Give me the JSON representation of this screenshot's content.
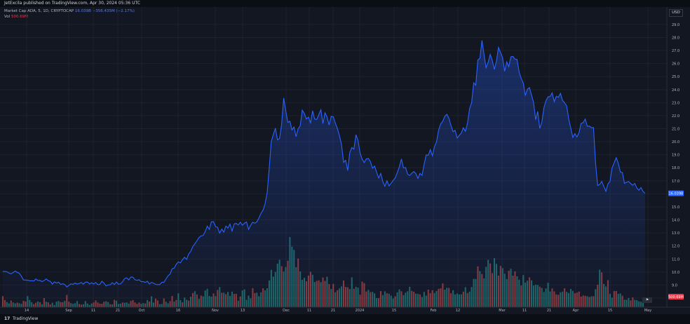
{
  "header": {
    "text": "JetExcila published on TradingView.com, Apr 30, 2024 05:36 UTC"
  },
  "legend": {
    "main_label": "Market Cap ADA, 5, 1D, CRYPTOCAP",
    "main_value": "16.039B",
    "main_change": "−356.435M (−2.17%)",
    "vol_label": "Vol",
    "vol_value": "500.69M"
  },
  "currency": "USD",
  "footer": {
    "logo": "17",
    "brand": "TradingView"
  },
  "colors": {
    "line": "#2962ff",
    "vol_up": "#26a69a",
    "vol_down": "#ef5350",
    "price_tag": "#2962ff",
    "vol_tag": "#f23645"
  },
  "chart_data": {
    "type": "area",
    "y_axis": {
      "ticks": [
        "29.0",
        "28.0",
        "27.0",
        "26.0",
        "25.0",
        "24.0",
        "23.0",
        "22.0",
        "21.0",
        "20.0",
        "19.0",
        "18.0",
        "17.0",
        "16.0",
        "15.0",
        "14.0",
        "13.0",
        "12.0",
        "11.0",
        "10.0",
        "9.0",
        "8.0"
      ],
      "range": [
        7.3,
        29.8
      ],
      "unit": "B"
    },
    "x_axis": {
      "ticks": [
        "14",
        "Sep",
        "11",
        "21",
        "Oct",
        "16",
        "Nov",
        "13",
        "Dec",
        "11",
        "21",
        "2024",
        "15",
        "Feb",
        "12",
        "Mar",
        "11",
        "21",
        "Apr",
        "15",
        "May"
      ]
    },
    "last_price_label": "16.039B",
    "last_volume_label": "500.69M",
    "last_price": 16.04,
    "series": [
      {
        "values": [
          10.04,
          10.04,
          10.02,
          9.92,
          9.86,
          9.96,
          10.07,
          9.97,
          9.9,
          9.67,
          9.39,
          9.38,
          9.37,
          9.33,
          9.33,
          9.31,
          9.47,
          9.35,
          9.36,
          9.26,
          9.35,
          9.47,
          9.34,
          9.28,
          9.07,
          9.24,
          9.15,
          9.22,
          9.05,
          9.1,
          9.04,
          8.85,
          8.97,
          9.09,
          9.05,
          9.15,
          9.07,
          9.12,
          9.19,
          9.07,
          9.22,
          9.23,
          9.08,
          9.17,
          9.08,
          9.19,
          9.03,
          9.05,
          9.29,
          9.14,
          8.93,
          9.01,
          9.02,
          9.18,
          9.04,
          9.23,
          9.06,
          9.09,
          9.25,
          9.5,
          9.55,
          9.39,
          9.62,
          9.6,
          9.41,
          9.36,
          9.41,
          9.26,
          9.26,
          9.2,
          9.29,
          9.07,
          9.2,
          9.14,
          9.05,
          9.03,
          9.03,
          9.21,
          9.21,
          9.46,
          9.71,
          9.84,
          10.25,
          10.3,
          10.6,
          10.77,
          10.7,
          10.94,
          11.13,
          10.96,
          11.38,
          11.58,
          11.95,
          12.17,
          12.4,
          12.64,
          12.77,
          12.81,
          13.1,
          13.52,
          13.27,
          13.85,
          13.86,
          13.49,
          13.43,
          12.98,
          13.29,
          13.06,
          13.52,
          13.37,
          13.68,
          13.14,
          13.68,
          13.73,
          13.61,
          13.82,
          13.59,
          13.74,
          13.84,
          13.27,
          13.59,
          13.82,
          13.74,
          13.85,
          14.14,
          14.5,
          14.75,
          15.24,
          16.09,
          17.98,
          20.03,
          20.57,
          21.04,
          20.14,
          20.24,
          21.34,
          23.35,
          22.37,
          21.48,
          21.57,
          20.91,
          21.13,
          20.39,
          20.99,
          21.22,
          22.42,
          22.16,
          21.75,
          21.89,
          21.45,
          22.37,
          21.73,
          21.71,
          22.08,
          22.45,
          21.39,
          22.22,
          21.89,
          21.28,
          21.94,
          21.92,
          21.43,
          21.02,
          20.46,
          19.79,
          18.42,
          18.57,
          17.78,
          19.17,
          19.55,
          19.43,
          20.54,
          20.08,
          19.13,
          18.66,
          18.4,
          18.68,
          18.71,
          18.47,
          17.96,
          18.13,
          17.65,
          17.21,
          17.56,
          16.93,
          16.58,
          17.0,
          16.61,
          16.81,
          17.03,
          17.22,
          17.63,
          18.07,
          18.67,
          17.99,
          18.02,
          17.51,
          17.41,
          17.58,
          17.71,
          17.55,
          17.18,
          17.57,
          17.42,
          18.27,
          18.99,
          18.96,
          19.39,
          18.93,
          19.61,
          19.99,
          20.88,
          21.36,
          21.56,
          21.95,
          22.1,
          21.8,
          21.25,
          20.77,
          20.87,
          20.28,
          20.48,
          20.67,
          21.07,
          20.8,
          21.42,
          22.52,
          23.0,
          24.52,
          24.34,
          26.27,
          26.4,
          27.78,
          26.7,
          25.68,
          26.1,
          26.7,
          26.24,
          25.55,
          26.18,
          27.24,
          26.84,
          26.44,
          25.4,
          26.13,
          25.76,
          26.51,
          26.55,
          26.34,
          26.31,
          25.35,
          24.85,
          24.51,
          23.54,
          24.03,
          24.15,
          23.58,
          23.01,
          21.69,
          22.33,
          21.02,
          21.49,
          22.61,
          23.15,
          23.45,
          23.47,
          23.75,
          23.08,
          23.49,
          23.41,
          23.71,
          23.17,
          22.99,
          22.76,
          21.76,
          21.04,
          20.33,
          20.62,
          20.37,
          20.69,
          21.41,
          21.46,
          21.74,
          21.19,
          21.2,
          21.08,
          21.09,
          18.37,
          16.64,
          16.71,
          16.95,
          16.57,
          16.19,
          16.76,
          16.96,
          17.99,
          18.38,
          18.77,
          18.35,
          17.68,
          17.63,
          16.8,
          16.89,
          16.94,
          16.79,
          16.66,
          16.8,
          16.44,
          16.28,
          16.48,
          16.18,
          16.04
        ]
      }
    ],
    "volume_series": {
      "values": [
        0.87,
        0.56,
        0.4,
        0.29,
        0.52,
        0.37,
        0.3,
        0.36,
        0.31,
        0.26,
        0.5,
        0.44,
        0.87,
        0.57,
        0.39,
        0.24,
        0.35,
        0.45,
        0.39,
        0.23,
        0.71,
        0.43,
        0.38,
        0.21,
        0.35,
        0.16,
        0.43,
        0.49,
        0.4,
        0.39,
        0.49,
        0.96,
        0.43,
        0.32,
        0.27,
        0.31,
        0.48,
        0.25,
        0.2,
        0.23,
        0.48,
        0.29,
        0.17,
        0.29,
        0.37,
        0.53,
        0.37,
        0.28,
        0.27,
        0.43,
        0.47,
        0.4,
        0.23,
        0.22,
        0.58,
        0.51,
        0.25,
        0.28,
        0.37,
        0.35,
        0.37,
        0.28,
        0.49,
        0.56,
        0.37,
        0.26,
        0.37,
        0.27,
        0.32,
        0.29,
        0.56,
        0.44,
        0.85,
        0.36,
        0.67,
        0.53,
        0.24,
        0.25,
        0.68,
        0.43,
        0.31,
        0.47,
        0.88,
        0.44,
        0.57,
        1.09,
        0.55,
        0.38,
        0.75,
        0.58,
        0.52,
        0.82,
        1.11,
        1.25,
        1.0,
        0.65,
        0.91,
        0.85,
        1.31,
        1.44,
        0.88,
        0.83,
        1.08,
        0.87,
        1.35,
        1.58,
        1.13,
        1.14,
        1.02,
        1.19,
        0.89,
        1.22,
        1.04,
        1.05,
        0.51,
        0.84,
        1.31,
        1.4,
        0.57,
        0.91,
        0.69,
        1.49,
        1.1,
        1.14,
        0.86,
        1.16,
        1.48,
        1.32,
        1.48,
        2.1,
        2.93,
        2.4,
        2.76,
        3.41,
        3.72,
        3.21,
        2.79,
        3.15,
        3.64,
        5.5,
        4.75,
        4.49,
        3.14,
        3.81,
        2.8,
        2.15,
        2.3,
        2.03,
        2.48,
        2.77,
        2.54,
        1.97,
        2.06,
        2.1,
        1.96,
        2.33,
        2.06,
        2.39,
        1.81,
        1.43,
        1.83,
        1.17,
        1.33,
        1.47,
        1.63,
        2.09,
        1.59,
        1.56,
        1.42,
        2.34,
        1.44,
        1.6,
        1.53,
        0.98,
        2.0,
        1.89,
        1.23,
        1.35,
        1.18,
        1.2,
        1.08,
        0.71,
        0.71,
        1.26,
        0.95,
        1.24,
        1.09,
        1.06,
        0.91,
        0.68,
        0.85,
        1.16,
        1.39,
        1.25,
        0.95,
        1.14,
        1.25,
        1.6,
        1.28,
        1.21,
        1.06,
        1.04,
        1.0,
        0.8,
        1.2,
        0.91,
        1.38,
        1.1,
        1.33,
        1.11,
        1.27,
        1.44,
        1.48,
        1.86,
        1.37,
        1.52,
        1.51,
        1.09,
        1.33,
        1.0,
        1.07,
        1.0,
        1.01,
        1.22,
        1.57,
        1.1,
        1.22,
        1.58,
        2.22,
        2.21,
        3.2,
        2.83,
        2.6,
        2.26,
        3.17,
        3.71,
        3.43,
        2.67,
        3.84,
        3.4,
        2.47,
        3.24,
        3.06,
        2.63,
        2.21,
        2.86,
        3.01,
        2.47,
        2.81,
        2.42,
        2.16,
        1.7,
        2.52,
        1.93,
        2.08,
        2.34,
        2.11,
        1.69,
        1.76,
        1.74,
        1.61,
        1.51,
        1.19,
        1.47,
        1.92,
        1.23,
        1.47,
        1.24,
        1.0,
        0.97,
        1.17,
        1.22,
        1.48,
        1.2,
        1.11,
        1.43,
        1.28,
        1.09,
        1.14,
        1.23,
        0.83,
        0.92,
        0.89,
        0.86,
        0.8,
        0.85,
        0.86,
        1.41,
        1.76,
        2.94,
        2.73,
        1.82,
        1.63,
        2.12,
        1.05,
        0.75,
        1.27,
        1.27,
        1.04,
        1.08,
        0.9,
        0.59,
        0.58,
        0.72,
        0.53,
        0.76,
        0.57,
        0.55,
        0.46,
        0.43,
        0.5
      ],
      "up": [
        0,
        0,
        1,
        1,
        0,
        1,
        1,
        0,
        1,
        1,
        0,
        0,
        1,
        1,
        1,
        0,
        0,
        1,
        0,
        1,
        0,
        1,
        0,
        0,
        1,
        1,
        1,
        1,
        0,
        0,
        1,
        0,
        0,
        1,
        1,
        1,
        1,
        0,
        0,
        1,
        1,
        1,
        1,
        1,
        0,
        0,
        0,
        0,
        0,
        0,
        1,
        1,
        0,
        1,
        0,
        1,
        1,
        1,
        0,
        1,
        1,
        1,
        0,
        0,
        0,
        0,
        0,
        1,
        1,
        0,
        1,
        0,
        1,
        1,
        0,
        0,
        1,
        1,
        0,
        1,
        1,
        0,
        0,
        1,
        0,
        1,
        1,
        0,
        1,
        1,
        0,
        1,
        0,
        1,
        0,
        1,
        0,
        1,
        1,
        1,
        1,
        1,
        0,
        1,
        0,
        1,
        0,
        1,
        0,
        1,
        1,
        1,
        0,
        0,
        1,
        0,
        1,
        1,
        1,
        1,
        1,
        0,
        0,
        1,
        1,
        1,
        0,
        1,
        1,
        1,
        1,
        1,
        1,
        1,
        1,
        0,
        1,
        1,
        0,
        1,
        1,
        1,
        1,
        0,
        1,
        1,
        1,
        0,
        0,
        0,
        1,
        1,
        0,
        0,
        1,
        0,
        0,
        1,
        0,
        1,
        0,
        1,
        0,
        1,
        1,
        0,
        0,
        0,
        1,
        1,
        0,
        1,
        1,
        0,
        0,
        0,
        0,
        1,
        0,
        1,
        1,
        1,
        0,
        0,
        1,
        1,
        0,
        1,
        1,
        1,
        0,
        1,
        1,
        0,
        1,
        1,
        1,
        1,
        0,
        0,
        1,
        1,
        0,
        1,
        1,
        1,
        0,
        0,
        0,
        1,
        1,
        0,
        0,
        0,
        1,
        1,
        0,
        0,
        1,
        1,
        1,
        1,
        1,
        0,
        1,
        0,
        1,
        1,
        1,
        1,
        0,
        1,
        0,
        1,
        1,
        1,
        0,
        0,
        1,
        1,
        0,
        0,
        1,
        1,
        1,
        0,
        1,
        0,
        0,
        1,
        1,
        0,
        1,
        1,
        1,
        0,
        1,
        1,
        1,
        1,
        0,
        1,
        1,
        1,
        1,
        1,
        0,
        0,
        0,
        0,
        1,
        1,
        0,
        1,
        1,
        1,
        1,
        0,
        0,
        0,
        0,
        0,
        0,
        1,
        0,
        1,
        0,
        1,
        0,
        1,
        0,
        1,
        1,
        0,
        1,
        1,
        0,
        0,
        1,
        1,
        0,
        1,
        1,
        1,
        0,
        0,
        1,
        1,
        1,
        1,
        1,
        0,
        1,
        1,
        0,
        1,
        0,
        0,
        0
      ]
    }
  }
}
